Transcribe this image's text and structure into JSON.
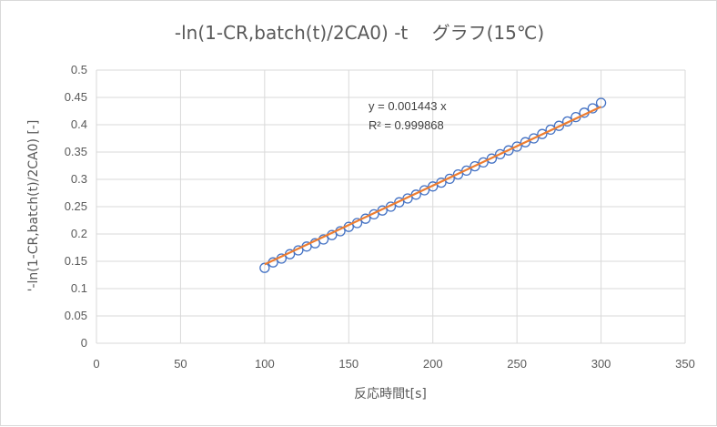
{
  "chart_data": {
    "type": "scatter",
    "title": "-ln(1-CR,batch(t)/2CA0) -t　 グラフ(15℃)",
    "xlabel": "反応時間t[s]",
    "ylabel": "'-ln(1-CR,batch(t)/2CA0) [-]",
    "xlim": [
      0,
      350
    ],
    "ylim": [
      0,
      0.5
    ],
    "x_ticks": [
      "0",
      "50",
      "100",
      "150",
      "200",
      "250",
      "300",
      "350"
    ],
    "y_ticks": [
      "0",
      "0.05",
      "0.1",
      "0.15",
      "0.2",
      "0.25",
      "0.3",
      "0.35",
      "0.4",
      "0.45",
      "0.5"
    ],
    "grid": true,
    "colors": {
      "marker": "#4472c4",
      "trendline": "#ed7d31",
      "grid": "#d9d9d9",
      "text": "#595959"
    },
    "series": [
      {
        "marker": "circle",
        "x": [
          100,
          105,
          110,
          115,
          120,
          125,
          130,
          135,
          140,
          145,
          150,
          155,
          160,
          165,
          170,
          175,
          180,
          185,
          190,
          195,
          200,
          205,
          210,
          215,
          220,
          225,
          230,
          235,
          240,
          245,
          250,
          255,
          260,
          265,
          270,
          275,
          280,
          285,
          290,
          295,
          300
        ],
        "y": [
          0.138,
          0.148,
          0.155,
          0.163,
          0.17,
          0.177,
          0.183,
          0.19,
          0.198,
          0.205,
          0.213,
          0.22,
          0.228,
          0.236,
          0.243,
          0.25,
          0.258,
          0.265,
          0.272,
          0.28,
          0.287,
          0.294,
          0.301,
          0.309,
          0.316,
          0.324,
          0.331,
          0.338,
          0.346,
          0.353,
          0.36,
          0.368,
          0.375,
          0.383,
          0.391,
          0.398,
          0.406,
          0.414,
          0.422,
          0.43,
          0.44
        ]
      }
    ],
    "trendline": {
      "type": "linear",
      "slope": 0.001443,
      "intercept": 0,
      "x_range": [
        100,
        300
      ]
    },
    "annotations": [
      "y = 0.001443 x",
      "R² = 0.999868"
    ]
  }
}
